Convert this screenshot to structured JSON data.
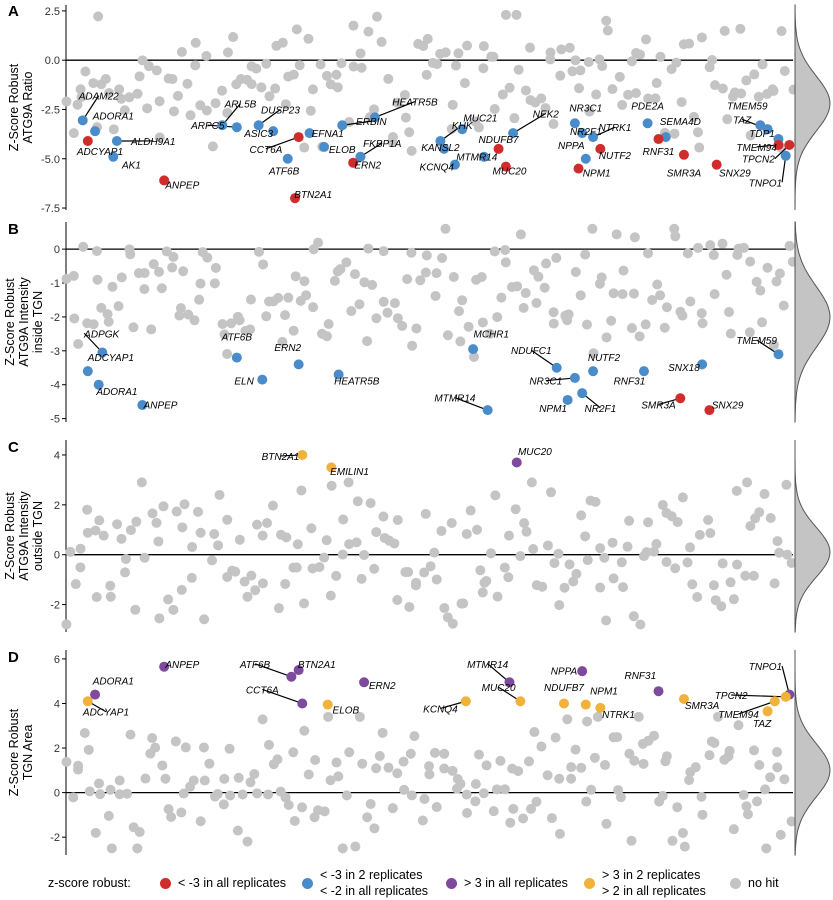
{
  "colors": {
    "red": "#d12c2c",
    "blue": "#4a8cc9",
    "purple": "#7e4a9e",
    "orange": "#f0b23a",
    "grey": "#c4c4c4",
    "density": "#c4c4c4"
  },
  "legend": {
    "title": "z-score robust:",
    "items": [
      {
        "color_key": "red",
        "lines": [
          "< -3 in all replicates"
        ]
      },
      {
        "color_key": "blue",
        "lines": [
          "< -3 in 2 replicates",
          "< -2 in all replicates"
        ]
      },
      {
        "color_key": "purple",
        "lines": [
          "> 3 in all replicates"
        ]
      },
      {
        "color_key": "orange",
        "lines": [
          "> 3 in 2 replicates",
          "> 2 in all replicates"
        ]
      },
      {
        "color_key": "grey",
        "lines": [
          "no hit"
        ]
      }
    ]
  },
  "chart_data": [
    {
      "type": "scatter",
      "panel": "A",
      "ylabel": [
        "Z-Score Robust",
        "ATG9A Ratio"
      ],
      "ylim": [
        -7.6,
        2.8
      ],
      "yticks": [
        2.5,
        0,
        -2.5,
        -5,
        -7.5
      ],
      "ytick_labels": [
        "2.5",
        "0.0",
        "-2.5",
        "-5.0",
        "-7.5"
      ],
      "xlim": [
        0,
        100
      ],
      "hline": 0,
      "grey_seed": 11,
      "grey_count": 185,
      "grey_range": [
        -4.6,
        2.3
      ],
      "density": {
        "mean": -2.2,
        "sd": 1.4
      },
      "hits": [
        {
          "label": "ADAM22",
          "x": 2.3,
          "y": -3.05,
          "color": "blue",
          "lx": 4.5,
          "ly": -2.0
        },
        {
          "label": "ADORA1",
          "x": 4.0,
          "y": -3.6,
          "color": "blue",
          "lx": 6.5,
          "ly": -3.0
        },
        {
          "label": "ADCYAP1",
          "x": 3.0,
          "y": -4.1,
          "color": "red",
          "lx": 1.5,
          "ly": -4.8
        },
        {
          "label": "AK1",
          "x": 6.5,
          "y": -4.9,
          "color": "blue",
          "lx": 9.0,
          "ly": -5.5
        },
        {
          "label": "ALDH9A1",
          "x": 7.0,
          "y": -4.1,
          "color": "blue",
          "lx": 12.0,
          "ly": -4.3
        },
        {
          "label": "ANPEP",
          "x": 13.5,
          "y": -6.1,
          "color": "red",
          "lx": 16.0,
          "ly": -6.5
        },
        {
          "label": "ARL5B",
          "x": 21.5,
          "y": -3.3,
          "color": "blue",
          "lx": 24.0,
          "ly": -2.4
        },
        {
          "label": "ARPC5",
          "x": 23.5,
          "y": -3.4,
          "color": "blue",
          "lx": 19.5,
          "ly": -3.5
        },
        {
          "label": "DUSP23",
          "x": 26.5,
          "y": -3.3,
          "color": "blue",
          "lx": 29.5,
          "ly": -2.7
        },
        {
          "label": "ASIC3",
          "x": 28.5,
          "y": -3.6,
          "color": "blue",
          "lx": 26.5,
          "ly": -3.9
        },
        {
          "label": "CCT6A",
          "x": 32.0,
          "y": -3.9,
          "color": "red",
          "lx": 27.5,
          "ly": -4.7
        },
        {
          "label": "EFNA1",
          "x": 33.5,
          "y": -3.7,
          "color": "blue",
          "lx": 36.0,
          "ly": -3.9
        },
        {
          "label": "ATF6B",
          "x": 30.5,
          "y": -5.0,
          "color": "blue",
          "lx": 30.0,
          "ly": -5.8
        },
        {
          "label": "BTN2A1",
          "x": 31.5,
          "y": -7.0,
          "color": "red",
          "lx": 34.0,
          "ly": -7.0
        },
        {
          "label": "ELOB",
          "x": 35.5,
          "y": -4.4,
          "color": "blue",
          "lx": 38.0,
          "ly": -4.7
        },
        {
          "label": "ERBIN",
          "x": 38.0,
          "y": -3.3,
          "color": "blue",
          "lx": 42.0,
          "ly": -3.3
        },
        {
          "label": "FKBP1A",
          "x": 40.5,
          "y": -4.9,
          "color": "blue",
          "lx": 43.5,
          "ly": -4.4
        },
        {
          "label": "ERN2",
          "x": 39.5,
          "y": -5.2,
          "color": "red",
          "lx": 41.5,
          "ly": -5.5
        },
        {
          "label": "HEATR5B",
          "x": 42.5,
          "y": -2.9,
          "color": "blue",
          "lx": 48.0,
          "ly": -2.3
        },
        {
          "label": "KHK",
          "x": 51.5,
          "y": -4.1,
          "color": "blue",
          "lx": 54.5,
          "ly": -3.5
        },
        {
          "label": "KANSL2",
          "x": 52.0,
          "y": -4.5,
          "color": "blue",
          "lx": 51.5,
          "ly": -4.6
        },
        {
          "label": "MUC21",
          "x": 54.5,
          "y": -3.5,
          "color": "blue",
          "lx": 57.0,
          "ly": -3.1
        },
        {
          "label": "KCNQ4",
          "x": 53.5,
          "y": -5.3,
          "color": "blue",
          "lx": 51.0,
          "ly": -5.6
        },
        {
          "label": "MTMR14",
          "x": 57.5,
          "y": -4.9,
          "color": "blue",
          "lx": 56.5,
          "ly": -5.1
        },
        {
          "label": "NEK2",
          "x": 61.5,
          "y": -3.7,
          "color": "blue",
          "lx": 66.0,
          "ly": -2.9
        },
        {
          "label": "NDUFB7",
          "x": 59.5,
          "y": -4.5,
          "color": "red",
          "lx": 59.5,
          "ly": -4.2
        },
        {
          "label": "MUC20",
          "x": 60.5,
          "y": -5.4,
          "color": "red",
          "lx": 61.0,
          "ly": -5.8
        },
        {
          "label": "NR3C1",
          "x": 70.0,
          "y": -3.2,
          "color": "blue",
          "lx": 71.5,
          "ly": -2.6
        },
        {
          "label": "NR2F1",
          "x": 71.0,
          "y": -3.7,
          "color": "blue",
          "lx": 71.5,
          "ly": -3.8
        },
        {
          "label": "NPPA",
          "x": 71.5,
          "y": -5.0,
          "color": "blue",
          "lx": 69.5,
          "ly": -4.5
        },
        {
          "label": "NTRK1",
          "x": 72.5,
          "y": -3.9,
          "color": "blue",
          "lx": 75.5,
          "ly": -3.6
        },
        {
          "label": "NUTF2",
          "x": 73.5,
          "y": -4.5,
          "color": "red",
          "lx": 75.5,
          "ly": -5.0
        },
        {
          "label": "NPM1",
          "x": 70.5,
          "y": -5.5,
          "color": "red",
          "lx": 73.0,
          "ly": -5.9
        },
        {
          "label": "PDE2A",
          "x": 80.0,
          "y": -3.2,
          "color": "blue",
          "lx": 80.0,
          "ly": -2.5
        },
        {
          "label": "SEMA4D",
          "x": 82.5,
          "y": -3.9,
          "color": "blue",
          "lx": 84.5,
          "ly": -3.3
        },
        {
          "label": "RNF31",
          "x": 81.5,
          "y": -4.0,
          "color": "red",
          "lx": 81.5,
          "ly": -4.8
        },
        {
          "label": "SMR3A",
          "x": 85.0,
          "y": -4.8,
          "color": "red",
          "lx": 85.0,
          "ly": -5.9
        },
        {
          "label": "SNX29",
          "x": 89.5,
          "y": -5.3,
          "color": "red",
          "lx": 92.0,
          "ly": -5.9
        },
        {
          "label": "TMEM59",
          "x": 95.5,
          "y": -3.3,
          "color": "blue",
          "lx": 96.5,
          "ly": -2.5
        },
        {
          "label": "TAZ",
          "x": 96.5,
          "y": -3.5,
          "color": "blue",
          "lx": 93.0,
          "ly": -3.2
        },
        {
          "label": "TDP1",
          "x": 98.0,
          "y": -4.0,
          "color": "blue",
          "lx": 97.5,
          "ly": -3.9
        },
        {
          "label": "TMEM94",
          "x": 98.0,
          "y": -4.3,
          "color": "red",
          "lx": 95.0,
          "ly": -4.6
        },
        {
          "label": "TPCN2",
          "x": 99.5,
          "y": -4.3,
          "color": "red",
          "lx": 97.5,
          "ly": -5.2
        },
        {
          "label": "TNPO1",
          "x": 99.0,
          "y": -4.85,
          "color": "blue",
          "lx": 98.5,
          "ly": -6.4
        }
      ]
    },
    {
      "type": "scatter",
      "panel": "B",
      "ylabel": [
        "Z-Score Robust",
        "ATG9A Intensity",
        "inside TGN"
      ],
      "ylim": [
        -5.1,
        0.8
      ],
      "yticks": [
        0,
        -1,
        -2,
        -3,
        -4,
        -5
      ],
      "ytick_labels": [
        "0",
        "-1",
        "-2",
        "-3",
        "-4",
        "-5"
      ],
      "xlim": [
        0,
        100
      ],
      "hline": 0,
      "grey_seed": 23,
      "grey_count": 185,
      "grey_range": [
        -3.2,
        0.6
      ],
      "density": {
        "mean": -2.0,
        "sd": 0.9
      },
      "hits": [
        {
          "label": "ADPGK",
          "x": 5.0,
          "y": -3.05,
          "color": "blue",
          "lx": 2.5,
          "ly": -2.6
        },
        {
          "label": "ADCYAP1",
          "x": 3.0,
          "y": -3.6,
          "color": "blue",
          "lx": 3.0,
          "ly": -3.3
        },
        {
          "label": "ADORA1",
          "x": 4.5,
          "y": -4.0,
          "color": "blue",
          "lx": 7.0,
          "ly": -4.3
        },
        {
          "label": "ANPEP",
          "x": 10.5,
          "y": -4.6,
          "color": "blue",
          "lx": 13.0,
          "ly": -4.7
        },
        {
          "label": "ATF6B",
          "x": 23.5,
          "y": -3.2,
          "color": "blue",
          "lx": 23.5,
          "ly": -2.7
        },
        {
          "label": "ELN",
          "x": 27.0,
          "y": -3.85,
          "color": "blue",
          "lx": 24.5,
          "ly": -4.0
        },
        {
          "label": "ERN2",
          "x": 32.0,
          "y": -3.4,
          "color": "blue",
          "lx": 30.5,
          "ly": -3.0
        },
        {
          "label": "HEATR5B",
          "x": 37.5,
          "y": -3.7,
          "color": "blue",
          "lx": 40.0,
          "ly": -4.0
        },
        {
          "label": "MCHR1",
          "x": 56.0,
          "y": -2.95,
          "color": "blue",
          "lx": 58.5,
          "ly": -2.6
        },
        {
          "label": "MTMR14",
          "x": 58.0,
          "y": -4.75,
          "color": "blue",
          "lx": 53.5,
          "ly": -4.5
        },
        {
          "label": "NDUFC1",
          "x": 67.5,
          "y": -3.5,
          "color": "blue",
          "lx": 64.0,
          "ly": -3.1
        },
        {
          "label": "NR3C1",
          "x": 70.0,
          "y": -3.8,
          "color": "blue",
          "lx": 66.0,
          "ly": -4.0
        },
        {
          "label": "NUTF2",
          "x": 72.5,
          "y": -3.6,
          "color": "blue",
          "lx": 74.0,
          "ly": -3.3
        },
        {
          "label": "NPM1",
          "x": 69.0,
          "y": -4.45,
          "color": "blue",
          "lx": 67.0,
          "ly": -4.8
        },
        {
          "label": "NR2F1",
          "x": 71.0,
          "y": -4.25,
          "color": "blue",
          "lx": 73.5,
          "ly": -4.8
        },
        {
          "label": "RNF31",
          "x": 79.5,
          "y": -3.6,
          "color": "blue",
          "lx": 77.5,
          "ly": -4.0
        },
        {
          "label": "SNX18",
          "x": 87.5,
          "y": -3.4,
          "color": "blue",
          "lx": 85.0,
          "ly": -3.6
        },
        {
          "label": "SMR3A",
          "x": 84.5,
          "y": -4.4,
          "color": "red",
          "lx": 81.5,
          "ly": -4.7
        },
        {
          "label": "SNX29",
          "x": 88.5,
          "y": -4.75,
          "color": "red",
          "lx": 91.0,
          "ly": -4.7
        },
        {
          "label": "TMEM59",
          "x": 98.0,
          "y": -3.1,
          "color": "blue",
          "lx": 95.0,
          "ly": -2.8
        }
      ]
    },
    {
      "type": "scatter",
      "panel": "C",
      "ylabel": [
        "Z-Score Robust",
        "ATG9A Intensity",
        "outside TGN"
      ],
      "ylim": [
        -3.1,
        4.6
      ],
      "yticks": [
        4,
        2,
        0,
        -2
      ],
      "ytick_labels": [
        "4",
        "2",
        "0",
        "-2"
      ],
      "xlim": [
        0,
        100
      ],
      "hline": 0,
      "grey_seed": 37,
      "grey_count": 195,
      "grey_range": [
        -2.8,
        2.9
      ],
      "density": {
        "mean": 0.1,
        "sd": 1.0
      },
      "hits": [
        {
          "label": "BTN2A1",
          "x": 32.5,
          "y": 4.0,
          "color": "orange",
          "lx": 29.5,
          "ly": 3.8
        },
        {
          "label": "EMILIN1",
          "x": 36.5,
          "y": 3.5,
          "color": "orange",
          "lx": 39.0,
          "ly": 3.2
        },
        {
          "label": "MUC20",
          "x": 62.0,
          "y": 3.7,
          "color": "purple",
          "lx": 64.5,
          "ly": 4.0
        }
      ]
    },
    {
      "type": "scatter",
      "panel": "D",
      "ylabel": [
        "Z-Score Robust",
        "TGN Area"
      ],
      "ylim": [
        -2.8,
        6.4
      ],
      "yticks": [
        6,
        4,
        2,
        0,
        -2
      ],
      "ytick_labels": [
        "6",
        "4",
        "2",
        "0",
        "-2"
      ],
      "xlim": [
        0,
        100
      ],
      "hline": 0,
      "grey_seed": 51,
      "grey_count": 190,
      "grey_range": [
        -2.5,
        3.4
      ],
      "density": {
        "mean": 1.0,
        "sd": 1.2
      },
      "hits": [
        {
          "label": "ANPEP",
          "x": 13.5,
          "y": 5.65,
          "color": "purple",
          "lx": 16.0,
          "ly": 5.6
        },
        {
          "label": "ADORA1",
          "x": 4.0,
          "y": 4.4,
          "color": "purple",
          "lx": 6.5,
          "ly": 4.85
        },
        {
          "label": "ADCYAP1",
          "x": 3.0,
          "y": 4.1,
          "color": "orange",
          "lx": 5.5,
          "ly": 3.45
        },
        {
          "label": "ATF6B",
          "x": 31.0,
          "y": 5.2,
          "color": "purple",
          "lx": 26.0,
          "ly": 5.6
        },
        {
          "label": "BTN2A1",
          "x": 32.0,
          "y": 5.5,
          "color": "purple",
          "lx": 34.5,
          "ly": 5.6
        },
        {
          "label": "CCT6A",
          "x": 32.5,
          "y": 4.0,
          "color": "purple",
          "lx": 27.0,
          "ly": 4.45
        },
        {
          "label": "ELOB",
          "x": 36.0,
          "y": 3.95,
          "color": "orange",
          "lx": 38.5,
          "ly": 3.55
        },
        {
          "label": "ERN2",
          "x": 41.0,
          "y": 4.95,
          "color": "purple",
          "lx": 43.5,
          "ly": 4.65
        },
        {
          "label": "MTMR14",
          "x": 61.0,
          "y": 4.95,
          "color": "purple",
          "lx": 58.0,
          "ly": 5.6
        },
        {
          "label": "KCNQ4",
          "x": 55.0,
          "y": 4.1,
          "color": "orange",
          "lx": 51.5,
          "ly": 3.6
        },
        {
          "label": "MUC20",
          "x": 62.5,
          "y": 4.1,
          "color": "orange",
          "lx": 59.5,
          "ly": 4.55
        },
        {
          "label": "NPPA",
          "x": 71.0,
          "y": 5.45,
          "color": "purple",
          "lx": 68.5,
          "ly": 5.3
        },
        {
          "label": "NDUFB7",
          "x": 68.5,
          "y": 4.0,
          "color": "orange",
          "lx": 68.5,
          "ly": 4.55
        },
        {
          "label": "NPM1",
          "x": 71.5,
          "y": 3.95,
          "color": "orange",
          "lx": 74.0,
          "ly": 4.4
        },
        {
          "label": "NTRK1",
          "x": 73.5,
          "y": 3.8,
          "color": "orange",
          "lx": 76.0,
          "ly": 3.35
        },
        {
          "label": "RNF31",
          "x": 81.5,
          "y": 4.55,
          "color": "purple",
          "lx": 79.0,
          "ly": 5.1
        },
        {
          "label": "SMR3A",
          "x": 85.0,
          "y": 4.2,
          "color": "orange",
          "lx": 87.5,
          "ly": 3.75
        },
        {
          "label": "TNPO1",
          "x": 99.5,
          "y": 4.4,
          "color": "purple",
          "lx": 98.5,
          "ly": 5.5
        },
        {
          "label": "TPCN2",
          "x": 99.0,
          "y": 4.3,
          "color": "orange",
          "lx": 91.5,
          "ly": 4.2
        },
        {
          "label": "TMEM94",
          "x": 97.5,
          "y": 4.1,
          "color": "orange",
          "lx": 92.5,
          "ly": 3.35
        },
        {
          "label": "TAZ",
          "x": 96.5,
          "y": 3.65,
          "color": "orange",
          "lx": 97.0,
          "ly": 2.95
        }
      ]
    }
  ]
}
